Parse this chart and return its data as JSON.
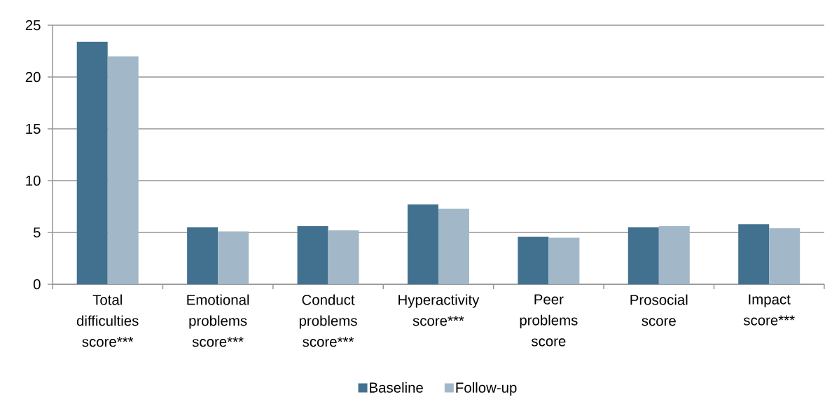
{
  "chart_data": {
    "type": "bar",
    "categories": [
      "Total difficulties score***",
      "Emotional problems score***",
      "Conduct problems score***",
      "Hyperactivity score***",
      "Peer problems score",
      "Prosocial score",
      "Impact score***"
    ],
    "series": [
      {
        "name": "Baseline",
        "color": "#41718f",
        "values": [
          23.4,
          5.5,
          5.6,
          7.7,
          4.6,
          5.5,
          5.8
        ]
      },
      {
        "name": "Follow-up",
        "color": "#a2b8c8",
        "values": [
          22.0,
          5.1,
          5.2,
          7.3,
          4.5,
          5.6,
          5.4
        ]
      }
    ],
    "ylim": [
      0,
      25
    ],
    "yticks": [
      0,
      5,
      10,
      15,
      20,
      25
    ],
    "grid": "y",
    "legend": "bottom"
  }
}
